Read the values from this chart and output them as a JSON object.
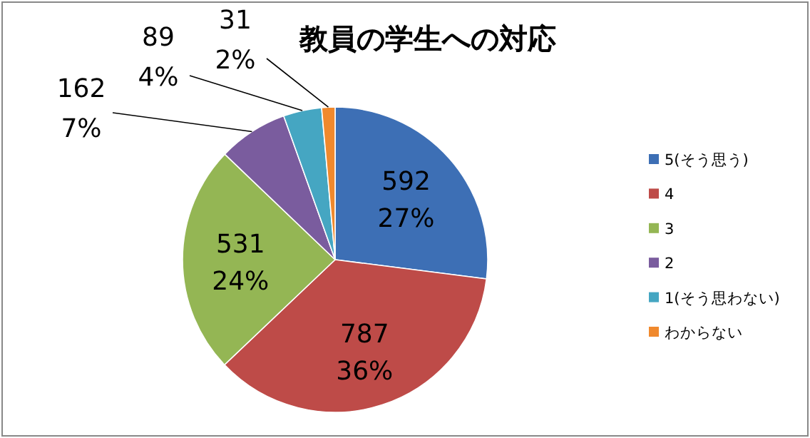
{
  "chart_data": {
    "type": "pie",
    "title": "教員の学生への対応",
    "categories": [
      "5(そう思う)",
      "4",
      "3",
      "2",
      "1(そう思わない)",
      "わからない"
    ],
    "values": [
      592,
      787,
      531,
      162,
      89,
      31
    ],
    "value_labels": [
      "592\n27%",
      "787\n36%",
      "531\n24%",
      "162\n7%",
      "89\n4%",
      "31\n2%"
    ],
    "colors": [
      "#3d6fb5",
      "#be4b48",
      "#94b654",
      "#7a5c9e",
      "#45a6c2",
      "#f0892d"
    ],
    "legend": "right"
  }
}
